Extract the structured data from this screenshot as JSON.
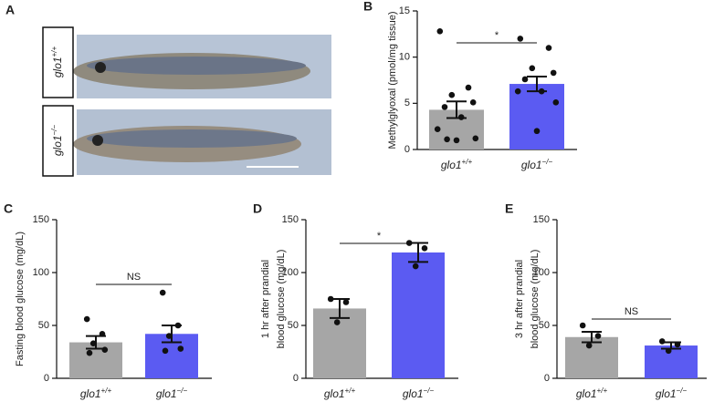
{
  "figure_a": {
    "panel": "A",
    "labels": [
      {
        "gene": "glo1",
        "genotype": "+/+"
      },
      {
        "gene": "glo1",
        "genotype": "−/−"
      }
    ]
  },
  "chart_data": [
    {
      "type": "bar",
      "panel": "B",
      "ylabel": [
        "Methylglyoxal (pmol/mg tissue)"
      ],
      "categories": [
        "glo1",
        "glo1"
      ],
      "category_superscripts": [
        "+/+",
        "−/−"
      ],
      "values": [
        4.3,
        7.1
      ],
      "errors": [
        0.9,
        0.8
      ],
      "colors": [
        "#a6a6a6",
        "#5b5bf2"
      ],
      "points": [
        [
          12.8,
          6.7,
          5.9,
          5.1,
          4.6,
          3.5,
          2.2,
          1.2,
          1.0,
          1.1
        ],
        [
          12.0,
          11.0,
          8.8,
          8.3,
          7.6,
          6.3,
          6.3,
          5.1,
          2.0
        ]
      ],
      "annotation": "*",
      "ylim": [
        0,
        15
      ],
      "yticks": [
        0,
        5,
        10,
        15
      ]
    },
    {
      "type": "bar",
      "panel": "C",
      "ylabel": [
        "Fasting blood glucose (mg/dL)"
      ],
      "categories": [
        "glo1",
        "glo1"
      ],
      "category_superscripts": [
        "+/+",
        "−/−"
      ],
      "values": [
        34,
        42
      ],
      "errors": [
        6,
        8
      ],
      "colors": [
        "#a6a6a6",
        "#5b5bf2"
      ],
      "points": [
        [
          56,
          42,
          33,
          27,
          24
        ],
        [
          81,
          50,
          40,
          28,
          26
        ]
      ],
      "annotation": "NS",
      "ylim": [
        0,
        150
      ],
      "yticks": [
        0,
        50,
        100,
        150
      ]
    },
    {
      "type": "bar",
      "panel": "D",
      "ylabel": [
        "1 hr after prandial",
        "blood glucose (mg/dL)"
      ],
      "categories": [
        "glo1",
        "glo1"
      ],
      "category_superscripts": [
        "+/+",
        "−/−"
      ],
      "values": [
        66,
        119
      ],
      "errors": [
        9,
        9
      ],
      "colors": [
        "#a6a6a6",
        "#5b5bf2"
      ],
      "points": [
        [
          75,
          72,
          53
        ],
        [
          128,
          123,
          106
        ]
      ],
      "annotation": "*",
      "ylim": [
        0,
        150
      ],
      "yticks": [
        0,
        50,
        100,
        150
      ]
    },
    {
      "type": "bar",
      "panel": "E",
      "ylabel": [
        "3 hr after prandial",
        "blood glucose (mg/dL)"
      ],
      "categories": [
        "glo1",
        "glo1"
      ],
      "category_superscripts": [
        "+/+",
        "−/−"
      ],
      "values": [
        39,
        31
      ],
      "errors": [
        5,
        3
      ],
      "colors": [
        "#a6a6a6",
        "#5b5bf2"
      ],
      "points": [
        [
          50,
          40,
          31
        ],
        [
          35,
          32,
          26
        ]
      ],
      "annotation": "NS",
      "ylim": [
        0,
        150
      ],
      "yticks": [
        0,
        50,
        100,
        150
      ]
    }
  ]
}
